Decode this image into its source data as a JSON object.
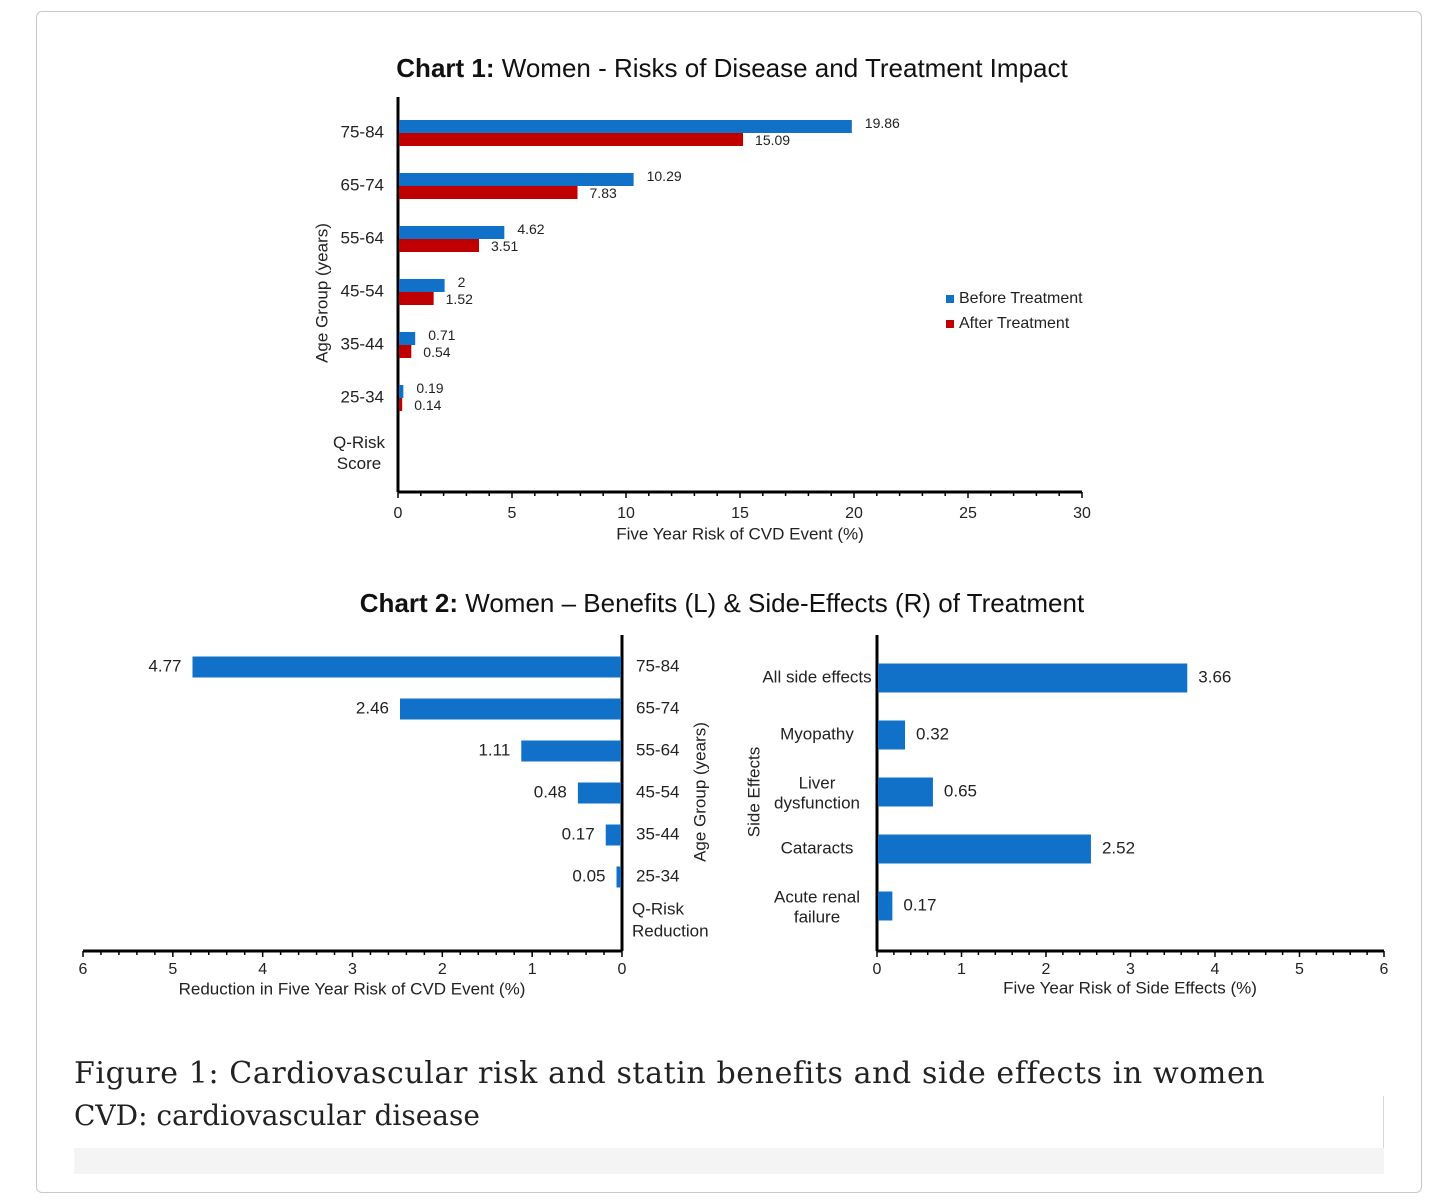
{
  "colors": {
    "before": "#1170c8",
    "after": "#c00000",
    "axis": "#000000"
  },
  "chart_data": [
    {
      "id": "chart1",
      "type": "bar",
      "orientation": "horizontal",
      "title_bold": "Chart 1:",
      "title": " Women - Risks of Disease and Treatment Impact",
      "categories": [
        "75-84",
        "65-74",
        "55-64",
        "45-54",
        "35-44",
        "25-34"
      ],
      "category_axis_title_label": "Q-Risk Score",
      "series": [
        {
          "name": "Before Treatment",
          "values": [
            19.86,
            10.29,
            4.62,
            2,
            0.71,
            0.19
          ],
          "labels": [
            "19.86",
            "10.29",
            "4.62",
            "2",
            "0.71",
            "0.19"
          ]
        },
        {
          "name": "After Treatment",
          "values": [
            15.09,
            7.83,
            3.51,
            1.52,
            0.54,
            0.14
          ],
          "labels": [
            "15.09",
            "7.83",
            "3.51",
            "1.52",
            "0.54",
            "0.14"
          ]
        }
      ],
      "xlabel": "Five Year Risk of CVD Event (%)",
      "ylabel": "Age Group (years)",
      "xlim": [
        0,
        30
      ],
      "xticks": [
        "0",
        "5",
        "10",
        "15",
        "20",
        "25",
        "30"
      ],
      "legend": "right",
      "grid": false
    },
    {
      "id": "chart2",
      "type": "bar",
      "orientation": "horizontal",
      "title_bold": "Chart 2:",
      "title": " Women – Benefits (L) & Side-Effects (R) of Treatment",
      "panels": [
        {
          "id": "benefits",
          "direction": "reversed",
          "categories": [
            "75-84",
            "65-74",
            "55-64",
            "45-54",
            "35-44",
            "25-34"
          ],
          "category_axis_title_label": "Q-Risk Reduction",
          "values": [
            4.77,
            2.46,
            1.11,
            0.48,
            0.17,
            0.05
          ],
          "labels": [
            "4.77",
            "2.46",
            "1.11",
            "0.48",
            "0.17",
            "0.05"
          ],
          "xlabel": "Reduction in Five Year Risk of CVD Event (%)",
          "ylabel": "Age Group (years)",
          "xlim": [
            0,
            6
          ],
          "xticks": [
            "6",
            "5",
            "4",
            "3",
            "2",
            "1",
            "0"
          ]
        },
        {
          "id": "side-effects",
          "direction": "normal",
          "categories": [
            "All side effects",
            "Myopathy",
            "Liver dysfunction",
            "Cataracts",
            "Acute renal failure"
          ],
          "values": [
            3.66,
            0.32,
            0.65,
            2.52,
            0.17
          ],
          "labels": [
            "3.66",
            "0.32",
            "0.65",
            "2.52",
            "0.17"
          ],
          "xlabel": "Five Year Risk of Side Effects (%)",
          "ylabel": "Side Effects",
          "xlim": [
            0,
            6
          ],
          "xticks": [
            "0",
            "1",
            "2",
            "3",
            "4",
            "5",
            "6"
          ]
        }
      ],
      "grid": false
    }
  ],
  "caption": {
    "title": "Figure 1: Cardiovascular risk and statin benefits and side effects in women",
    "subtitle": "CVD: cardiovascular disease"
  }
}
